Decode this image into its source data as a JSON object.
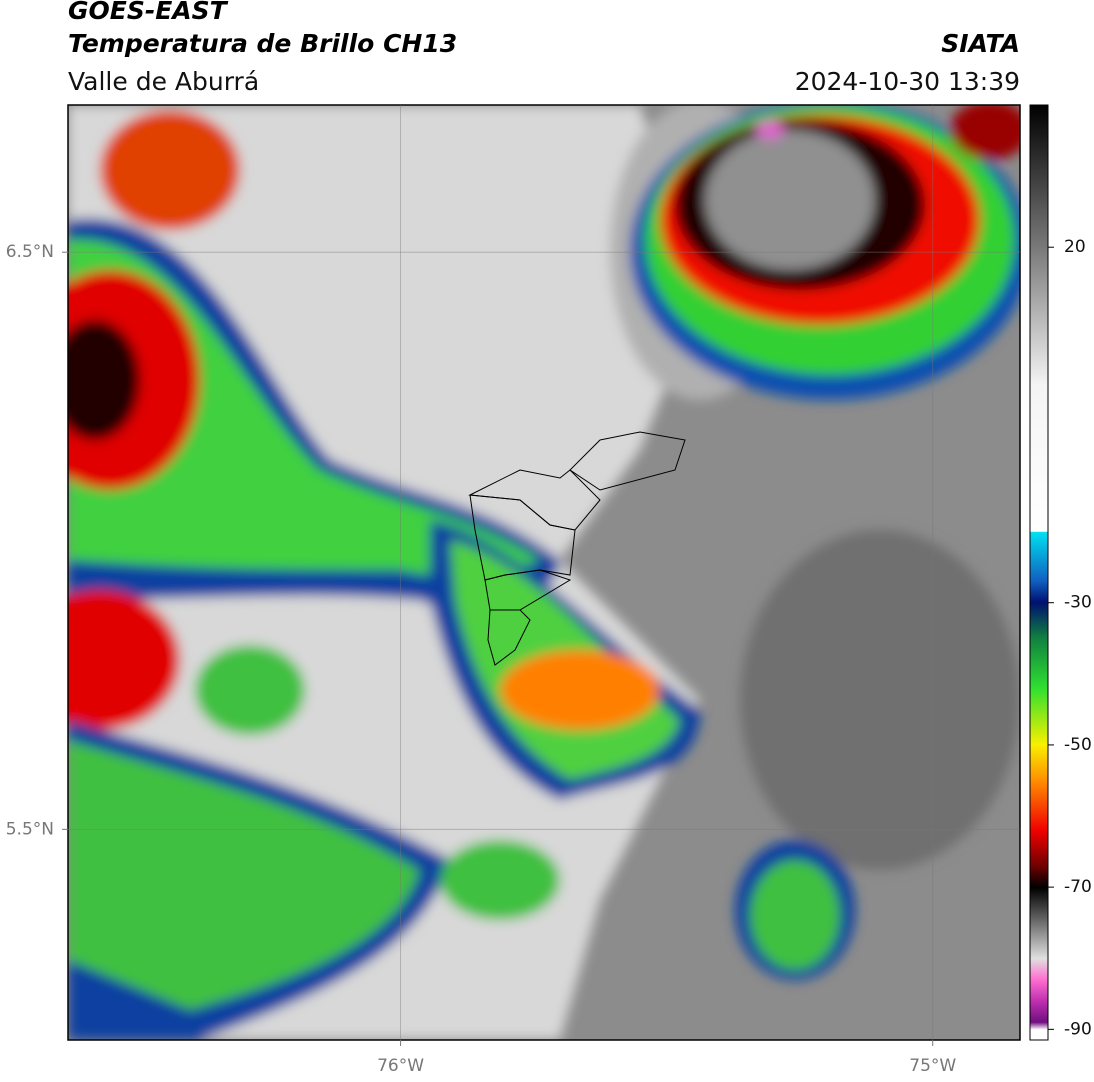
{
  "header": {
    "title": "GOES-EAST",
    "subtitle": "Temperatura de Brillo CH13",
    "source": "SIATA",
    "region": "Valle de Aburrá",
    "datetime": "2024-10-30 13:39"
  },
  "map": {
    "xlim": [
      -76.625,
      -74.836
    ],
    "ylim": [
      5.135,
      6.755
    ],
    "xticks": [
      {
        "value": -76,
        "label": "76°W"
      },
      {
        "value": -75,
        "label": "75°W"
      }
    ],
    "yticks": [
      {
        "value": 6.5,
        "label": "6.5°N"
      },
      {
        "value": 5.5,
        "label": "5.5°N"
      }
    ]
  },
  "colorbar": {
    "lim": [
      -91.5,
      40
    ],
    "ticks": [
      -90,
      -70,
      -50,
      -30,
      20
    ]
  }
}
